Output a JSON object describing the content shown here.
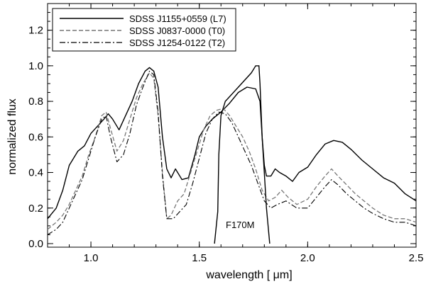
{
  "chart_data": {
    "type": "line",
    "xlabel": "wavelength [ μm]",
    "ylabel": "normalized flux",
    "xlim": [
      0.8,
      2.5
    ],
    "ylim": [
      -0.02,
      1.35
    ],
    "xticks": [
      1.0,
      1.5,
      2.0,
      2.5
    ],
    "xtick_labels": [
      "1.0",
      "1.5",
      "2.0",
      "2.5"
    ],
    "yticks": [
      0.0,
      0.2,
      0.4,
      0.6,
      0.8,
      1.0,
      1.2
    ],
    "ytick_labels": [
      "0.0",
      "0.2",
      "0.4",
      "0.6",
      "0.8",
      "1.0",
      "1.2"
    ],
    "legend_position": "top-left",
    "series": [
      {
        "name": "SDSS J1155+0559 (L7)",
        "style": "solid",
        "x": [
          0.8,
          0.84,
          0.87,
          0.9,
          0.94,
          0.97,
          1.0,
          1.03,
          1.06,
          1.08,
          1.1,
          1.13,
          1.16,
          1.19,
          1.22,
          1.25,
          1.27,
          1.29,
          1.31,
          1.33,
          1.35,
          1.37,
          1.39,
          1.42,
          1.45,
          1.48,
          1.5,
          1.53,
          1.56,
          1.6,
          1.64,
          1.68,
          1.72,
          1.76,
          1.78,
          1.79,
          1.8,
          1.81,
          1.83,
          1.85,
          1.87,
          1.9,
          1.93,
          1.96,
          2.0,
          2.04,
          2.08,
          2.12,
          2.16,
          2.2,
          2.25,
          2.3,
          2.35,
          2.4,
          2.45,
          2.5
        ],
        "y": [
          0.14,
          0.2,
          0.3,
          0.44,
          0.52,
          0.55,
          0.62,
          0.66,
          0.7,
          0.73,
          0.7,
          0.64,
          0.72,
          0.8,
          0.9,
          0.97,
          0.99,
          0.97,
          0.88,
          0.6,
          0.42,
          0.37,
          0.42,
          0.36,
          0.37,
          0.5,
          0.6,
          0.66,
          0.7,
          0.74,
          0.79,
          0.85,
          0.88,
          0.87,
          0.8,
          0.6,
          0.44,
          0.38,
          0.38,
          0.42,
          0.4,
          0.38,
          0.35,
          0.4,
          0.43,
          0.5,
          0.56,
          0.58,
          0.57,
          0.53,
          0.47,
          0.42,
          0.37,
          0.34,
          0.28,
          0.24
        ]
      },
      {
        "name": "SDSS J0837-0000 (T0)",
        "style": "dashed",
        "x": [
          0.8,
          0.84,
          0.87,
          0.9,
          0.93,
          0.96,
          0.99,
          1.02,
          1.05,
          1.07,
          1.09,
          1.12,
          1.15,
          1.18,
          1.21,
          1.24,
          1.27,
          1.29,
          1.31,
          1.33,
          1.35,
          1.37,
          1.4,
          1.43,
          1.46,
          1.49,
          1.52,
          1.55,
          1.58,
          1.61,
          1.64,
          1.67,
          1.7,
          1.73,
          1.76,
          1.79,
          1.82,
          1.85,
          1.88,
          1.91,
          1.95,
          2.0,
          2.04,
          2.08,
          2.11,
          2.14,
          2.18,
          2.22,
          2.26,
          2.3,
          2.35,
          2.4,
          2.45,
          2.5
        ],
        "y": [
          0.08,
          0.12,
          0.16,
          0.22,
          0.3,
          0.38,
          0.5,
          0.6,
          0.72,
          0.74,
          0.65,
          0.52,
          0.58,
          0.7,
          0.82,
          0.9,
          0.96,
          0.93,
          0.72,
          0.4,
          0.14,
          0.16,
          0.24,
          0.28,
          0.4,
          0.52,
          0.64,
          0.72,
          0.75,
          0.76,
          0.72,
          0.66,
          0.6,
          0.52,
          0.42,
          0.3,
          0.24,
          0.26,
          0.3,
          0.26,
          0.22,
          0.25,
          0.32,
          0.38,
          0.42,
          0.38,
          0.33,
          0.28,
          0.24,
          0.2,
          0.16,
          0.14,
          0.14,
          0.12
        ]
      },
      {
        "name": "SDSS J1254-0122 (T2)",
        "style": "dashdot",
        "x": [
          0.8,
          0.84,
          0.87,
          0.9,
          0.93,
          0.96,
          0.99,
          1.02,
          1.05,
          1.07,
          1.09,
          1.12,
          1.15,
          1.18,
          1.21,
          1.24,
          1.27,
          1.29,
          1.31,
          1.33,
          1.35,
          1.38,
          1.41,
          1.44,
          1.47,
          1.5,
          1.53,
          1.56,
          1.59,
          1.62,
          1.65,
          1.68,
          1.71,
          1.74,
          1.77,
          1.8,
          1.83,
          1.86,
          1.9,
          1.95,
          2.0,
          2.04,
          2.08,
          2.11,
          2.14,
          2.18,
          2.22,
          2.26,
          2.3,
          2.35,
          2.4,
          2.45,
          2.5
        ],
        "y": [
          0.05,
          0.08,
          0.12,
          0.2,
          0.28,
          0.36,
          0.48,
          0.6,
          0.7,
          0.72,
          0.6,
          0.46,
          0.5,
          0.62,
          0.78,
          0.88,
          0.97,
          0.95,
          0.74,
          0.38,
          0.14,
          0.14,
          0.18,
          0.22,
          0.34,
          0.48,
          0.62,
          0.7,
          0.74,
          0.73,
          0.68,
          0.6,
          0.52,
          0.44,
          0.34,
          0.24,
          0.2,
          0.22,
          0.24,
          0.2,
          0.2,
          0.26,
          0.32,
          0.36,
          0.33,
          0.28,
          0.24,
          0.2,
          0.17,
          0.14,
          0.12,
          0.12,
          0.1
        ]
      }
    ],
    "filter_curve": {
      "label": "F170M",
      "x": [
        1.57,
        1.585,
        1.59,
        1.6,
        1.62,
        1.68,
        1.74,
        1.76,
        1.775,
        1.78,
        1.79,
        1.81,
        1.825
      ],
      "y": [
        0.0,
        0.18,
        0.5,
        0.72,
        0.8,
        0.88,
        0.96,
        1.0,
        1.0,
        0.9,
        0.6,
        0.2,
        0.0
      ]
    }
  }
}
